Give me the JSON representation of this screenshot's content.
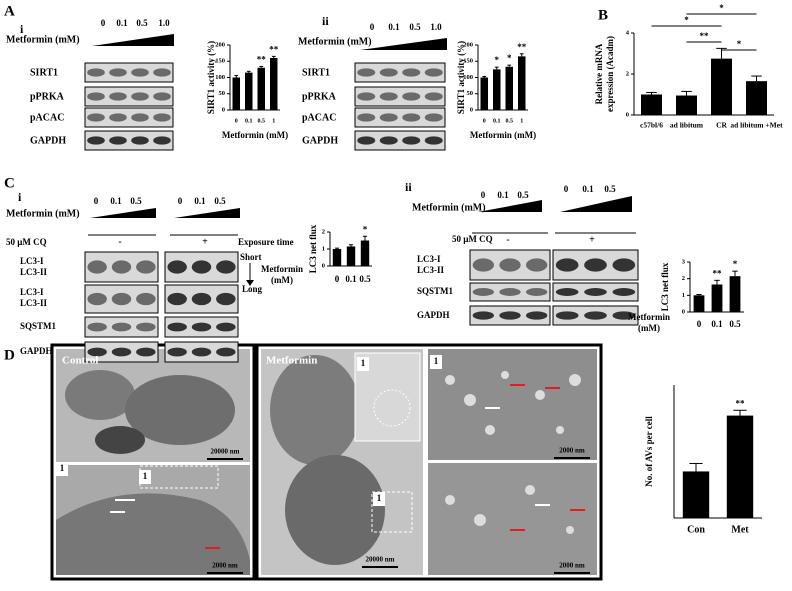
{
  "figure": {
    "panel_labels": [
      "A",
      "i",
      "ii",
      "B",
      "C",
      "i",
      "ii",
      "D"
    ],
    "a_i": {
      "treatment": "Metformin (mM)",
      "doses": [
        "0",
        "0.1",
        "0.5",
        "1.0"
      ],
      "rows": [
        "SIRT1",
        "pPRKA",
        "pACAC",
        "GAPDH"
      ]
    },
    "a_ii": {
      "treatment": "Metformin (mM)",
      "doses": [
        "0",
        "0.1",
        "0.5",
        "1.0"
      ],
      "rows": [
        "SIRT1",
        "pPRKA",
        "pACAC",
        "GAPDH"
      ]
    },
    "c_i": {
      "treatment": "Metformin (mM)",
      "doses": [
        "0",
        "0.1",
        "0.5"
      ],
      "cq": "50 µM CQ",
      "cq_levels": [
        "-",
        "+"
      ],
      "exposure": "Exposure time",
      "exposure_levels": [
        "Short",
        "Long"
      ],
      "rows": [
        "LC3-I",
        "LC3-II",
        "LC3-I",
        "LC3-II",
        "SQSTM1",
        "GAPDH"
      ]
    },
    "c_ii": {
      "treatment": "Metformin (mM)",
      "doses": [
        "0",
        "0.1",
        "0.5"
      ],
      "cq": "50 µM CQ",
      "cq_levels": [
        "-",
        "+"
      ],
      "rows": [
        "LC3-I",
        "LC3-II",
        "SQSTM1",
        "GAPDH"
      ]
    },
    "d": {
      "control": "Control",
      "metformin": "Metformin",
      "inset_labels": [
        "1",
        "1",
        "1",
        "1",
        "1"
      ],
      "scale_bars": [
        "20000 nm",
        "2000 nm",
        "20000 nm",
        "2000 nm",
        "2000 nm"
      ]
    }
  },
  "chart_data": [
    {
      "type": "bar",
      "ylabel": "SIRT1 activity (%)",
      "xlabel": "Metformin (mM)",
      "categories": [
        "0",
        "0.1",
        "0.5",
        "1"
      ],
      "values": [
        100,
        115,
        130,
        160
      ],
      "errors": [
        6,
        4,
        4,
        5
      ],
      "value_annotations": [
        null,
        null,
        "**",
        "**"
      ],
      "ylim": [
        0,
        200
      ],
      "yticks": [
        0,
        50,
        100,
        150,
        200
      ],
      "color": "#000000"
    },
    {
      "type": "bar",
      "ylabel": "SIRT1 activity (%)",
      "xlabel": "Metformin (mM)",
      "categories": [
        "0",
        "0.1",
        "0.5",
        "1"
      ],
      "values": [
        100,
        125,
        133,
        165
      ],
      "errors": [
        3,
        7,
        5,
        8
      ],
      "value_annotations": [
        null,
        "*",
        "*",
        "**"
      ],
      "ylim": [
        0,
        200
      ],
      "yticks": [
        0,
        50,
        100,
        150,
        200
      ],
      "color": "#000000"
    },
    {
      "type": "bar",
      "ylabel": [
        "Relative mRNA",
        "expression (Acadm)"
      ],
      "categories": [
        "c57bl/6",
        "ad libitum",
        "CR",
        "ad libitum +Met"
      ],
      "values": [
        1.0,
        0.95,
        2.75,
        1.65
      ],
      "errors": [
        0.1,
        0.2,
        0.5,
        0.25
      ],
      "significance": [
        "*",
        "*",
        "**",
        "*"
      ],
      "ylim": [
        0,
        4
      ],
      "yticks": [
        0,
        2,
        4
      ],
      "color": "#000000"
    },
    {
      "type": "bar",
      "ylabel": "LC3 net flux",
      "xlabel": [
        "Metformin",
        "(mM)"
      ],
      "categories": [
        "0",
        "0.1",
        "0.5"
      ],
      "values": [
        1.0,
        1.15,
        1.5
      ],
      "errors": [
        0.05,
        0.1,
        0.25
      ],
      "value_annotations": [
        null,
        null,
        "*"
      ],
      "ylim": [
        0,
        2
      ],
      "yticks": [
        0,
        1,
        2
      ],
      "color": "#000000"
    },
    {
      "type": "bar",
      "ylabel": "LC3 net flux",
      "xlabel": [
        "Metformin",
        "(mM)"
      ],
      "categories": [
        "0",
        "0.1",
        "0.5"
      ],
      "values": [
        1.0,
        1.65,
        2.15
      ],
      "errors": [
        0.05,
        0.25,
        0.3
      ],
      "value_annotations": [
        null,
        "**",
        "*"
      ],
      "ylim": [
        0,
        3
      ],
      "yticks": [
        0,
        1,
        2,
        3
      ],
      "color": "#000000"
    },
    {
      "type": "bar",
      "ylabel": "No. of AVs per cell",
      "categories": [
        "Con",
        "Met"
      ],
      "values": [
        3.5,
        7.7
      ],
      "errors": [
        0.6,
        0.4
      ],
      "value_annotations": [
        null,
        "**"
      ],
      "ylim": [
        0,
        10
      ],
      "color": "#000000"
    }
  ]
}
